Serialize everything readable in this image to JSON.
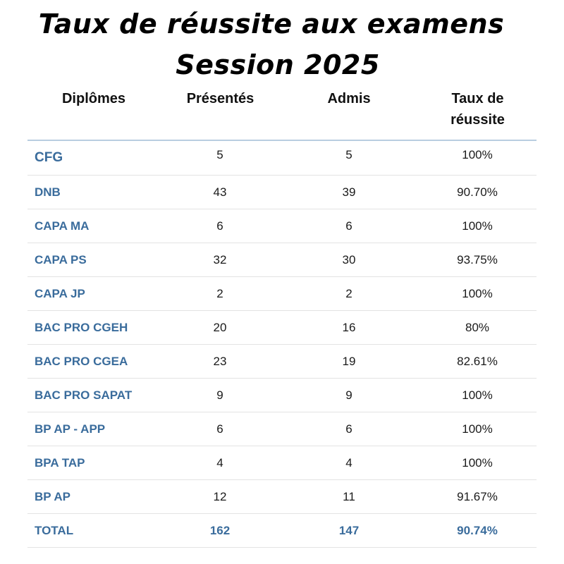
{
  "title_line1": "Taux de réussite aux examens",
  "title_line2": "Session 2025",
  "headers": {
    "diplome": "Diplômes",
    "presentes": "Présentés",
    "admis": "Admis",
    "taux_line1": "Taux de",
    "taux_line2": "réussite"
  },
  "rows": [
    {
      "diplome": "CFG",
      "presentes": "5",
      "admis": "5",
      "taux": "100%"
    },
    {
      "diplome": "DNB",
      "presentes": "43",
      "admis": "39",
      "taux": "90.70%"
    },
    {
      "diplome": "CAPA MA",
      "presentes": "6",
      "admis": "6",
      "taux": "100%"
    },
    {
      "diplome": "CAPA PS",
      "presentes": "32",
      "admis": "30",
      "taux": "93.75%"
    },
    {
      "diplome": "CAPA JP",
      "presentes": "2",
      "admis": "2",
      "taux": "100%"
    },
    {
      "diplome": "BAC PRO CGEH",
      "presentes": "20",
      "admis": "16",
      "taux": "80%"
    },
    {
      "diplome": "BAC PRO CGEA",
      "presentes": "23",
      "admis": "19",
      "taux": "82.61%"
    },
    {
      "diplome": "BAC PRO SAPAT",
      "presentes": "9",
      "admis": "9",
      "taux": "100%"
    },
    {
      "diplome": "BP AP - APP",
      "presentes": "6",
      "admis": "6",
      "taux": "100%"
    },
    {
      "diplome": "BPA TAP",
      "presentes": "4",
      "admis": "4",
      "taux": "100%"
    },
    {
      "diplome": "BP AP",
      "presentes": "12",
      "admis": "11",
      "taux": "91.67%"
    }
  ],
  "total": {
    "diplome": "TOTAL",
    "presentes": "162",
    "admis": "147",
    "taux": "90.74%"
  },
  "colors": {
    "accent": "#3a6c9c",
    "rule": "#b9cde0",
    "divider": "#e3e3e3"
  }
}
